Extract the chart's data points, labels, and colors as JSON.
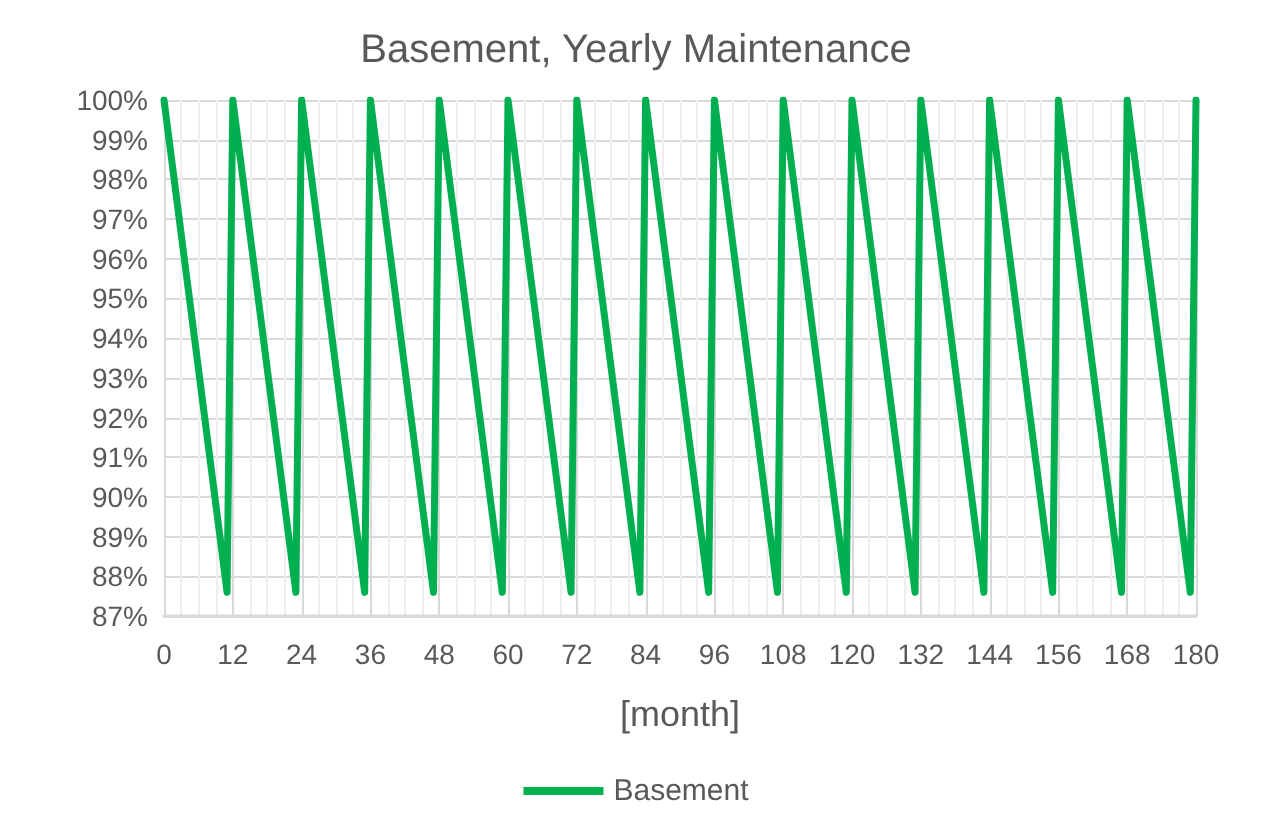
{
  "chart_data": {
    "type": "line",
    "title": "Basement, Yearly Maintenance",
    "xlabel": "[month]",
    "x": [
      0,
      11,
      12,
      23,
      24,
      35,
      36,
      47,
      48,
      59,
      60,
      71,
      72,
      83,
      84,
      95,
      96,
      107,
      108,
      119,
      120,
      131,
      132,
      143,
      144,
      155,
      156,
      167,
      168,
      179,
      180
    ],
    "series": [
      {
        "name": "Basement",
        "color": "#00b050",
        "values": [
          100,
          87.6,
          100,
          87.6,
          100,
          87.6,
          100,
          87.6,
          100,
          87.6,
          100,
          87.6,
          100,
          87.6,
          100,
          87.6,
          100,
          87.6,
          100,
          87.6,
          100,
          87.6,
          100,
          87.6,
          100,
          87.6,
          100,
          87.6,
          100,
          87.6,
          100
        ]
      }
    ],
    "xlim": [
      0,
      180
    ],
    "xticks": [
      0,
      12,
      24,
      36,
      48,
      60,
      72,
      84,
      96,
      108,
      120,
      132,
      144,
      156,
      168,
      180
    ],
    "ylim": [
      87,
      100
    ],
    "yticks": [
      {
        "value": 87,
        "label": "87%"
      },
      {
        "value": 88,
        "label": "88%"
      },
      {
        "value": 89,
        "label": "89%"
      },
      {
        "value": 90,
        "label": "90%"
      },
      {
        "value": 91,
        "label": "91%"
      },
      {
        "value": 92,
        "label": "92%"
      },
      {
        "value": 93,
        "label": "93%"
      },
      {
        "value": 94,
        "label": "94%"
      },
      {
        "value": 95,
        "label": "95%"
      },
      {
        "value": 96,
        "label": "96%"
      },
      {
        "value": 97,
        "label": "97%"
      },
      {
        "value": 98,
        "label": "98%"
      },
      {
        "value": 99,
        "label": "99%"
      },
      {
        "value": 100,
        "label": "100%"
      }
    ],
    "grid": true,
    "legend": "bottom",
    "marker": "none",
    "line_style": "solid"
  }
}
